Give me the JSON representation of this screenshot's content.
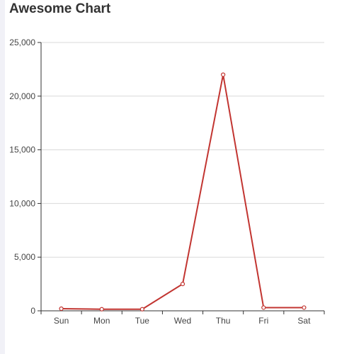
{
  "page": {
    "title": "Awesome Chart"
  },
  "chart_data": {
    "type": "line",
    "title": "Awesome Chart",
    "categories": [
      "Sun",
      "Mon",
      "Tue",
      "Wed",
      "Thu",
      "Fri",
      "Sat"
    ],
    "series": [
      {
        "values": [
          200,
          150,
          150,
          2500,
          22000,
          300,
          300
        ],
        "color": "#c23531"
      }
    ],
    "yticks": [
      "0",
      "5,000",
      "10,000",
      "15,000",
      "20,000",
      "25,000"
    ],
    "ylim": [
      0,
      25000
    ],
    "grid": true,
    "legend": "none"
  }
}
